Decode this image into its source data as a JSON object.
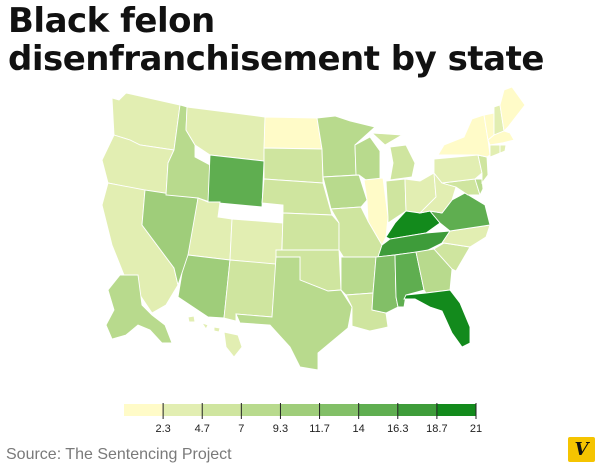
{
  "title": "Black felon disenfranchisement by state",
  "source": "Source: The Sentencing Project",
  "logo_text": "V",
  "colors": {
    "bin0": "#fffbc8",
    "bin1": "#e2eeb2",
    "bin2": "#cfe59f",
    "bin3": "#b8da8d",
    "bin4": "#9fcd7a",
    "bin5": "#82bf67",
    "bin6": "#5fae50",
    "bin7": "#3e9c3a",
    "bin8": "#138a1c",
    "logo": "#f5c400"
  },
  "legend": {
    "ticks": [
      "2.3",
      "4.7",
      "7",
      "9.3",
      "11.7",
      "14",
      "16.3",
      "18.7",
      "21"
    ]
  },
  "states": {
    "WA": 1,
    "OR": 1,
    "CA": 1,
    "ID": 3,
    "NV": 4,
    "MT": 1,
    "WY": 6,
    "UT": 1,
    "AZ": 4,
    "CO": 1,
    "NM": 2,
    "ND": 0,
    "SD": 2,
    "NE": 2,
    "KS": 2,
    "OK": 2,
    "TX": 3,
    "MN": 3,
    "IA": 3,
    "MO": 2,
    "AR": 3,
    "LA": 2,
    "WI": 3,
    "IL": 0,
    "MI": 2,
    "IN": 2,
    "OH": 1,
    "KY": 8,
    "TN": 7,
    "MS": 5,
    "AL": 6,
    "GA": 3,
    "FL": 8,
    "SC": 2,
    "NC": 1,
    "VA": 6,
    "WV": 1,
    "PA": 1,
    "NY": 0,
    "VT": 0,
    "NH": 1,
    "ME": 0,
    "MA": 0,
    "RI": 1,
    "CT": 1,
    "NJ": 2,
    "DE": 3,
    "MD": 2,
    "AK": 3,
    "HI": 1
  }
}
